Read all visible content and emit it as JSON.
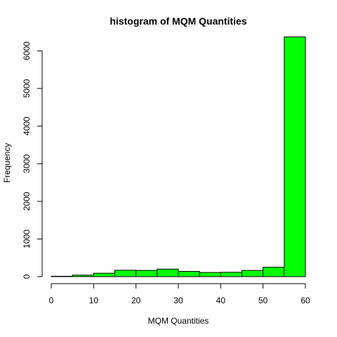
{
  "chart_data": {
    "type": "bar",
    "title": "histogram of MQM Quantities",
    "xlabel": "MQM Quantities",
    "ylabel": "Frequency",
    "bar_color": "#00ff00",
    "edge_color": "#000000",
    "xlim": [
      0,
      60
    ],
    "ylim": [
      0,
      6400
    ],
    "x_ticks": [
      0,
      10,
      20,
      30,
      40,
      50,
      60
    ],
    "y_ticks": [
      0,
      1000,
      2000,
      3000,
      4000,
      5000,
      6000
    ],
    "bins": [
      {
        "x0": 0,
        "x1": 5,
        "count": 10
      },
      {
        "x0": 5,
        "x1": 10,
        "count": 40
      },
      {
        "x0": 10,
        "x1": 15,
        "count": 90
      },
      {
        "x0": 15,
        "x1": 20,
        "count": 170
      },
      {
        "x0": 20,
        "x1": 25,
        "count": 165
      },
      {
        "x0": 25,
        "x1": 30,
        "count": 200
      },
      {
        "x0": 30,
        "x1": 35,
        "count": 140
      },
      {
        "x0": 35,
        "x1": 40,
        "count": 110
      },
      {
        "x0": 40,
        "x1": 45,
        "count": 115
      },
      {
        "x0": 45,
        "x1": 50,
        "count": 165
      },
      {
        "x0": 50,
        "x1": 55,
        "count": 250
      },
      {
        "x0": 55,
        "x1": 60,
        "count": 6370
      }
    ]
  }
}
